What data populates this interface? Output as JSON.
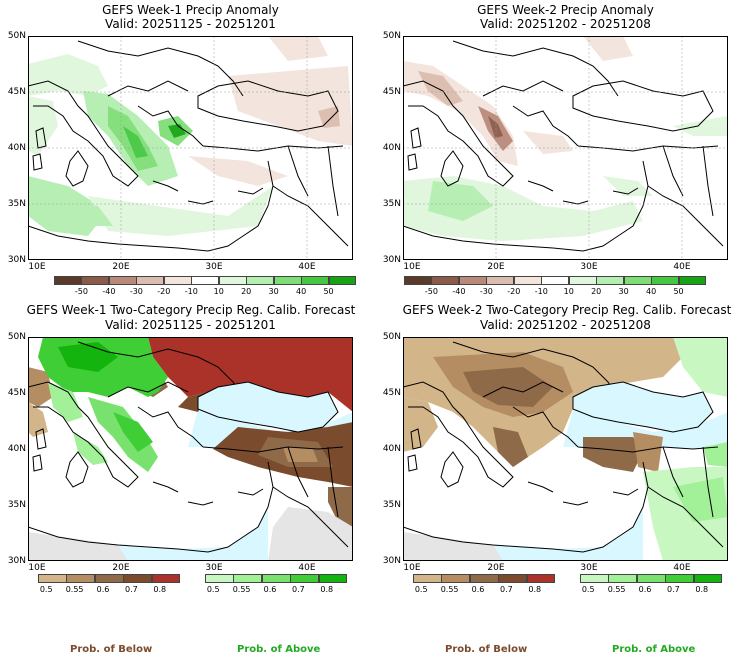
{
  "panels": [
    {
      "title": "GEFS Week-1 Precip Anomaly",
      "valid": "Valid: 20251125 - 20251201"
    },
    {
      "title": "GEFS Week-2 Precip Anomaly",
      "valid": "Valid: 20251202 - 20251208"
    },
    {
      "title": "GEFS Week-1 Two-Category Precip Reg. Calib. Forecast",
      "valid": "Valid: 20251125 - 20251201"
    },
    {
      "title": "GEFS Week-2 Two-Category Precip Reg. Calib. Forecast",
      "valid": "Valid: 20251202 - 20251208"
    }
  ],
  "lat_labels": [
    "50N",
    "45N",
    "40N",
    "35N",
    "30N"
  ],
  "lon_labels": [
    "10E",
    "20E",
    "30E",
    "40E"
  ],
  "anomaly_colorbar": {
    "colors": [
      "#5c3a2a",
      "#8b5a48",
      "#b98a7a",
      "#dcbcae",
      "#f3e4dc",
      "#ffffff",
      "#dff7dc",
      "#b4eeb0",
      "#7ede76",
      "#44c840",
      "#16a414"
    ],
    "ticks": [
      "-50",
      "-40",
      "-30",
      "-20",
      "-10",
      "10",
      "20",
      "30",
      "40",
      "50"
    ]
  },
  "below_colorbar": {
    "colors": [
      "#d3b58a",
      "#b48d63",
      "#8f6a48",
      "#7a4b2c",
      "#ab3228"
    ],
    "ticks": [
      "0.5",
      "0.55",
      "0.6",
      "0.7",
      "0.8"
    ],
    "label": "Prob. of Below",
    "label_color": "#7a4b2c"
  },
  "above_colorbar": {
    "colors": [
      "#c8f7c2",
      "#a2f098",
      "#79e26e",
      "#40ce36",
      "#14b40e"
    ],
    "ticks": [
      "0.5",
      "0.55",
      "0.6",
      "0.7",
      "0.8"
    ],
    "label": "Prob. of Above",
    "label_color": "#22aa22"
  },
  "map_colors": {
    "sea": "#d9f7ff",
    "land_bg": "#ffffff",
    "grey": "#e5e5e5"
  }
}
